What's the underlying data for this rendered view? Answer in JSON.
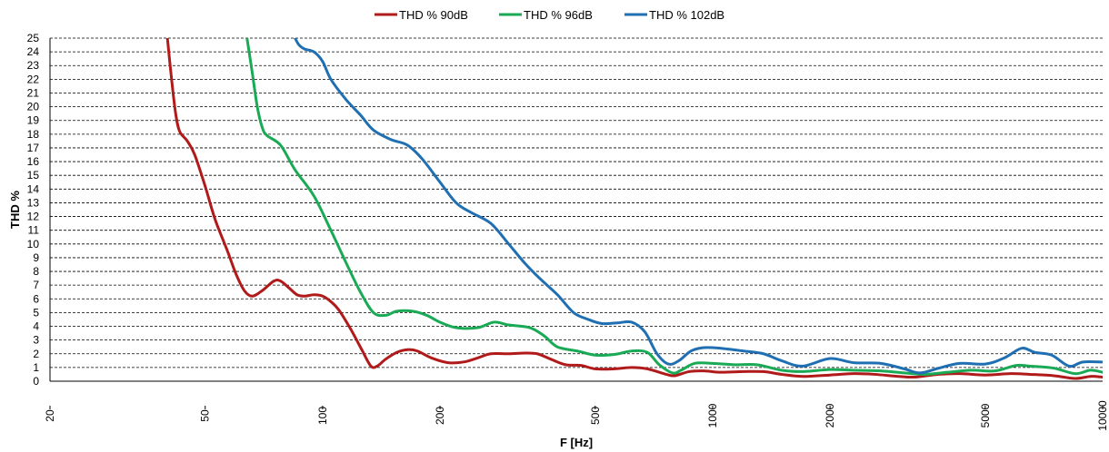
{
  "chart_data": {
    "type": "line",
    "title": "",
    "xlabel": "F [Hz]",
    "ylabel": "THD %",
    "x_scale": "log",
    "xlim": [
      20,
      10000
    ],
    "ylim": [
      0,
      25
    ],
    "grid": "horizontal dashed",
    "legend_position": "top-center",
    "x_ticks": [
      20,
      50,
      100,
      200,
      500,
      1000,
      2000,
      5000,
      10000
    ],
    "y_ticks": [
      0,
      1,
      2,
      3,
      4,
      5,
      6,
      7,
      8,
      9,
      10,
      11,
      12,
      13,
      14,
      15,
      16,
      17,
      18,
      19,
      20,
      21,
      22,
      23,
      24,
      25
    ],
    "series": [
      {
        "name": "THD % 90dB",
        "color": "#b01a1a",
        "points": [
          [
            40,
            25
          ],
          [
            41,
            22
          ],
          [
            42,
            19.5
          ],
          [
            43,
            18.2
          ],
          [
            45,
            17.5
          ],
          [
            47,
            16.5
          ],
          [
            50,
            14.2
          ],
          [
            53,
            11.8
          ],
          [
            57,
            9.5
          ],
          [
            60,
            7.8
          ],
          [
            63,
            6.6
          ],
          [
            66,
            6.2
          ],
          [
            70,
            6.6
          ],
          [
            75,
            7.3
          ],
          [
            78,
            7.3
          ],
          [
            82,
            6.8
          ],
          [
            86,
            6.3
          ],
          [
            90,
            6.2
          ],
          [
            95,
            6.3
          ],
          [
            100,
            6.2
          ],
          [
            105,
            5.8
          ],
          [
            110,
            5.2
          ],
          [
            118,
            3.8
          ],
          [
            126,
            2.3
          ],
          [
            133,
            1.1
          ],
          [
            138,
            1.1
          ],
          [
            145,
            1.6
          ],
          [
            155,
            2.1
          ],
          [
            165,
            2.3
          ],
          [
            175,
            2.2
          ],
          [
            190,
            1.7
          ],
          [
            210,
            1.35
          ],
          [
            230,
            1.4
          ],
          [
            250,
            1.7
          ],
          [
            270,
            2.0
          ],
          [
            300,
            2.0
          ],
          [
            330,
            2.05
          ],
          [
            355,
            2.0
          ],
          [
            385,
            1.6
          ],
          [
            420,
            1.2
          ],
          [
            460,
            1.15
          ],
          [
            500,
            0.9
          ],
          [
            560,
            0.9
          ],
          [
            620,
            1.0
          ],
          [
            680,
            0.9
          ],
          [
            760,
            0.5
          ],
          [
            800,
            0.4
          ],
          [
            870,
            0.7
          ],
          [
            950,
            0.75
          ],
          [
            1050,
            0.65
          ],
          [
            1200,
            0.7
          ],
          [
            1350,
            0.7
          ],
          [
            1500,
            0.5
          ],
          [
            1700,
            0.35
          ],
          [
            2000,
            0.45
          ],
          [
            2300,
            0.55
          ],
          [
            2600,
            0.5
          ],
          [
            3000,
            0.35
          ],
          [
            3300,
            0.3
          ],
          [
            3800,
            0.5
          ],
          [
            4300,
            0.55
          ],
          [
            5000,
            0.45
          ],
          [
            5800,
            0.55
          ],
          [
            6500,
            0.5
          ],
          [
            7500,
            0.4
          ],
          [
            8500,
            0.2
          ],
          [
            9300,
            0.35
          ],
          [
            10000,
            0.3
          ]
        ]
      },
      {
        "name": "THD % 96dB",
        "color": "#1aaa55",
        "points": [
          [
            64,
            25
          ],
          [
            66,
            22.5
          ],
          [
            68,
            20
          ],
          [
            70,
            18.5
          ],
          [
            72,
            17.9
          ],
          [
            78,
            17.2
          ],
          [
            85,
            15.4
          ],
          [
            95,
            13.5
          ],
          [
            105,
            11
          ],
          [
            115,
            8.6
          ],
          [
            125,
            6.5
          ],
          [
            135,
            5.0
          ],
          [
            145,
            4.8
          ],
          [
            155,
            5.1
          ],
          [
            170,
            5.1
          ],
          [
            185,
            4.8
          ],
          [
            200,
            4.3
          ],
          [
            220,
            3.9
          ],
          [
            250,
            3.9
          ],
          [
            275,
            4.3
          ],
          [
            300,
            4.1
          ],
          [
            340,
            3.9
          ],
          [
            370,
            3.3
          ],
          [
            400,
            2.5
          ],
          [
            450,
            2.2
          ],
          [
            500,
            1.9
          ],
          [
            560,
            1.95
          ],
          [
            620,
            2.2
          ],
          [
            680,
            2.1
          ],
          [
            730,
            1.2
          ],
          [
            790,
            0.6
          ],
          [
            830,
            0.8
          ],
          [
            900,
            1.3
          ],
          [
            1000,
            1.3
          ],
          [
            1150,
            1.2
          ],
          [
            1300,
            1.2
          ],
          [
            1500,
            0.8
          ],
          [
            1700,
            0.7
          ],
          [
            2000,
            0.85
          ],
          [
            2300,
            0.8
          ],
          [
            2700,
            0.75
          ],
          [
            3100,
            0.6
          ],
          [
            3500,
            0.5
          ],
          [
            4000,
            0.65
          ],
          [
            4600,
            0.8
          ],
          [
            5300,
            0.75
          ],
          [
            6000,
            1.15
          ],
          [
            6500,
            1.1
          ],
          [
            7500,
            0.95
          ],
          [
            8500,
            0.55
          ],
          [
            9300,
            0.8
          ],
          [
            10000,
            0.65
          ]
        ]
      },
      {
        "name": "THD % 102dB",
        "color": "#1f6fb2",
        "points": [
          [
            85,
            25
          ],
          [
            87,
            24.5
          ],
          [
            90,
            24.2
          ],
          [
            95,
            24.0
          ],
          [
            100,
            23.3
          ],
          [
            105,
            22
          ],
          [
            115,
            20.5
          ],
          [
            125,
            19.4
          ],
          [
            135,
            18.3
          ],
          [
            150,
            17.6
          ],
          [
            165,
            17.2
          ],
          [
            180,
            16.2
          ],
          [
            200,
            14.5
          ],
          [
            220,
            13.0
          ],
          [
            240,
            12.3
          ],
          [
            270,
            11.5
          ],
          [
            300,
            10.0
          ],
          [
            330,
            8.6
          ],
          [
            360,
            7.5
          ],
          [
            400,
            6.3
          ],
          [
            440,
            5.0
          ],
          [
            480,
            4.5
          ],
          [
            520,
            4.2
          ],
          [
            570,
            4.25
          ],
          [
            620,
            4.3
          ],
          [
            670,
            3.6
          ],
          [
            720,
            2.0
          ],
          [
            770,
            1.25
          ],
          [
            820,
            1.5
          ],
          [
            880,
            2.2
          ],
          [
            950,
            2.45
          ],
          [
            1050,
            2.4
          ],
          [
            1200,
            2.2
          ],
          [
            1350,
            2.0
          ],
          [
            1500,
            1.5
          ],
          [
            1700,
            1.1
          ],
          [
            2000,
            1.65
          ],
          [
            2300,
            1.35
          ],
          [
            2700,
            1.3
          ],
          [
            3100,
            0.9
          ],
          [
            3400,
            0.6
          ],
          [
            3800,
            0.95
          ],
          [
            4300,
            1.3
          ],
          [
            5000,
            1.25
          ],
          [
            5600,
            1.7
          ],
          [
            6200,
            2.4
          ],
          [
            6700,
            2.1
          ],
          [
            7400,
            1.9
          ],
          [
            8200,
            1.1
          ],
          [
            8900,
            1.4
          ],
          [
            10000,
            1.4
          ]
        ]
      }
    ]
  }
}
